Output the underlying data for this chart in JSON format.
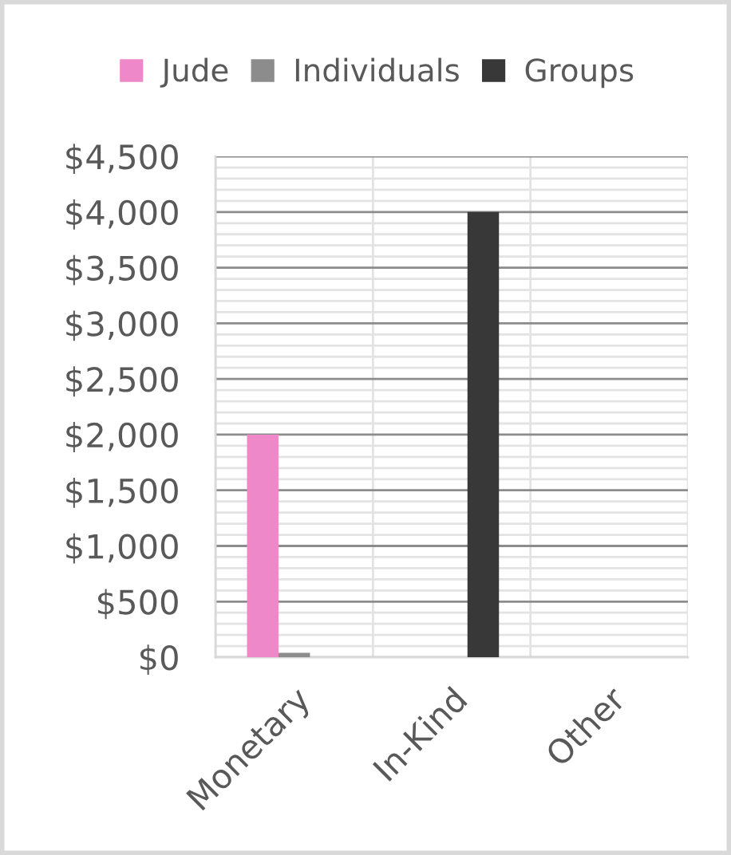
{
  "chart_data": {
    "type": "bar",
    "categories": [
      "Monetary",
      "In-Kind",
      "Other"
    ],
    "series": [
      {
        "name": "Jude",
        "color": "#ee88c8",
        "values": [
          2000,
          null,
          null
        ]
      },
      {
        "name": "Individuals",
        "color": "#8c8c8c",
        "values": [
          40,
          null,
          null
        ]
      },
      {
        "name": "Groups",
        "color": "#383838",
        "values": [
          null,
          4000,
          null
        ]
      }
    ],
    "ylim": [
      0,
      4500
    ],
    "yticks": [
      {
        "value": 0,
        "label": "$0"
      },
      {
        "value": 100,
        "label": null
      },
      {
        "value": 200,
        "label": null
      },
      {
        "value": 300,
        "label": null
      },
      {
        "value": 400,
        "label": null
      },
      {
        "value": 500,
        "label": "$500"
      },
      {
        "value": 600,
        "label": null
      },
      {
        "value": 700,
        "label": null
      },
      {
        "value": 800,
        "label": null
      },
      {
        "value": 900,
        "label": null
      },
      {
        "value": 1000,
        "label": "$1,000"
      },
      {
        "value": 1100,
        "label": null
      },
      {
        "value": 1200,
        "label": null
      },
      {
        "value": 1300,
        "label": null
      },
      {
        "value": 1400,
        "label": null
      },
      {
        "value": 1500,
        "label": "$1,500"
      },
      {
        "value": 1600,
        "label": null
      },
      {
        "value": 1700,
        "label": null
      },
      {
        "value": 1800,
        "label": null
      },
      {
        "value": 1900,
        "label": null
      },
      {
        "value": 2000,
        "label": "$2,000"
      },
      {
        "value": 2100,
        "label": null
      },
      {
        "value": 2200,
        "label": null
      },
      {
        "value": 2300,
        "label": null
      },
      {
        "value": 2400,
        "label": null
      },
      {
        "value": 2500,
        "label": "$2,500"
      },
      {
        "value": 2600,
        "label": null
      },
      {
        "value": 2700,
        "label": null
      },
      {
        "value": 2800,
        "label": null
      },
      {
        "value": 2900,
        "label": null
      },
      {
        "value": 3000,
        "label": "$3,000"
      },
      {
        "value": 3100,
        "label": null
      },
      {
        "value": 3200,
        "label": null
      },
      {
        "value": 3300,
        "label": null
      },
      {
        "value": 3400,
        "label": null
      },
      {
        "value": 3500,
        "label": "$3,500"
      },
      {
        "value": 3600,
        "label": null
      },
      {
        "value": 3700,
        "label": null
      },
      {
        "value": 3800,
        "label": null
      },
      {
        "value": 3900,
        "label": null
      },
      {
        "value": 4000,
        "label": "$4,000"
      },
      {
        "value": 4100,
        "label": null
      },
      {
        "value": 4200,
        "label": null
      },
      {
        "value": 4300,
        "label": null
      },
      {
        "value": 4400,
        "label": null
      },
      {
        "value": 4500,
        "label": "$4,500"
      }
    ],
    "grid": true,
    "legend": "top"
  }
}
